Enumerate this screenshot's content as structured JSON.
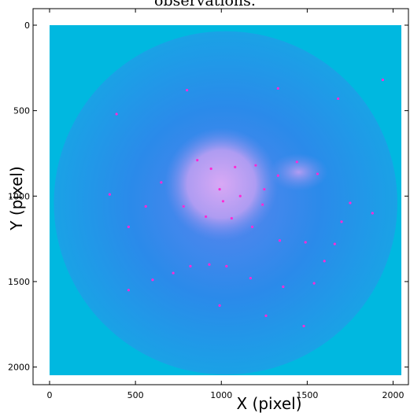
{
  "title_fragment": "observations.",
  "chart_data": {
    "type": "heatmap",
    "xlabel": "X (pixel)",
    "ylabel": "Y (pixel)",
    "xlim": [
      0,
      2048
    ],
    "ylim": [
      2048,
      0
    ],
    "xticks": [
      0,
      500,
      1000,
      1500,
      2000
    ],
    "yticks": [
      0,
      500,
      1000,
      1500,
      2000
    ],
    "grid": false,
    "image_extent": [
      0,
      2048,
      0,
      2048
    ],
    "colors": {
      "background": "#00b8e0",
      "disk": "#1a90e8",
      "disk_inner": "#4a84ec",
      "core": "#c09ef0",
      "hotspot": "#ff2ad4"
    },
    "disk": {
      "center": [
        1025,
        1040
      ],
      "radius": 1000
    },
    "bright_region": {
      "center": [
        1000,
        930
      ],
      "rx": 330,
      "ry": 330
    },
    "secondary_region": {
      "center": [
        1450,
        860
      ],
      "rx": 170,
      "ry": 110
    },
    "hot_pixels": [
      [
        390,
        520
      ],
      [
        800,
        380
      ],
      [
        1330,
        370
      ],
      [
        1680,
        430
      ],
      [
        1940,
        320
      ],
      [
        860,
        790
      ],
      [
        940,
        840
      ],
      [
        1080,
        830
      ],
      [
        1200,
        820
      ],
      [
        1330,
        880
      ],
      [
        990,
        960
      ],
      [
        1110,
        1000
      ],
      [
        1250,
        960
      ],
      [
        1440,
        800
      ],
      [
        1560,
        870
      ],
      [
        780,
        1060
      ],
      [
        910,
        1120
      ],
      [
        1060,
        1130
      ],
      [
        1180,
        1180
      ],
      [
        350,
        990
      ],
      [
        560,
        1060
      ],
      [
        460,
        1180
      ],
      [
        1490,
        1270
      ],
      [
        1700,
        1150
      ],
      [
        1880,
        1100
      ],
      [
        930,
        1400
      ],
      [
        820,
        1410
      ],
      [
        720,
        1450
      ],
      [
        1030,
        1410
      ],
      [
        1170,
        1480
      ],
      [
        1340,
        1260
      ],
      [
        1600,
        1380
      ],
      [
        1660,
        1280
      ],
      [
        1540,
        1510
      ],
      [
        460,
        1550
      ],
      [
        600,
        1490
      ],
      [
        1360,
        1530
      ],
      [
        1480,
        1760
      ],
      [
        1260,
        1700
      ],
      [
        990,
        1640
      ],
      [
        1010,
        1030
      ],
      [
        1240,
        1050
      ],
      [
        650,
        920
      ],
      [
        1750,
        1040
      ]
    ]
  }
}
